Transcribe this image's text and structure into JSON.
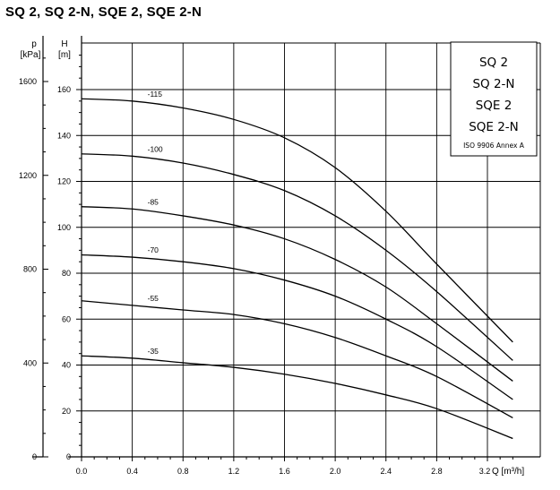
{
  "header": {
    "title": "SQ 2, SQ 2-N, SQE 2, SQE 2-N"
  },
  "legend": {
    "entries": [
      "SQ 2",
      "SQ 2-N",
      "SQE 2",
      "SQE 2-N"
    ],
    "note": "ISO 9906 Annex A"
  },
  "chart_data": {
    "type": "line",
    "title": "SQ 2, SQ 2-N, SQE 2, SQE 2-N",
    "xlabel": "Q [m³/h]",
    "ylabel": "H [m]",
    "y2label": "p [kPa]",
    "xlim": [
      0,
      3.2
    ],
    "ylim": [
      0,
      160
    ],
    "y2lim": [
      0,
      1600
    ],
    "grid": true,
    "legend_position": "top-right",
    "x_tick_labels": [
      "0.0",
      "0.4",
      "0.8",
      "1.2",
      "1.6",
      "2.0",
      "2.4",
      "2.8",
      "3.2"
    ],
    "y_tick_labels": [
      "0",
      "20",
      "40",
      "60",
      "80",
      "100",
      "120",
      "140",
      "160"
    ],
    "y2_tick_labels": [
      "0",
      "400",
      "800",
      "1200",
      "1600"
    ],
    "series": [
      {
        "name": "-115",
        "x": [
          0,
          0.4,
          0.8,
          1.2,
          1.6,
          2.0,
          2.4,
          2.8,
          3.4
        ],
        "y": [
          156,
          155,
          152,
          147,
          139,
          126,
          107,
          84,
          50
        ]
      },
      {
        "name": "-100",
        "x": [
          0,
          0.4,
          0.8,
          1.2,
          1.6,
          2.0,
          2.4,
          2.8,
          3.4
        ],
        "y": [
          132,
          131,
          128,
          123,
          116,
          105,
          90,
          72,
          42
        ]
      },
      {
        "name": "-85",
        "x": [
          0,
          0.4,
          0.8,
          1.2,
          1.6,
          2.0,
          2.4,
          2.8,
          3.4
        ],
        "y": [
          109,
          108,
          105,
          101,
          95,
          86,
          74,
          58,
          33
        ]
      },
      {
        "name": "-70",
        "x": [
          0,
          0.4,
          0.8,
          1.2,
          1.6,
          2.0,
          2.4,
          2.8,
          3.4
        ],
        "y": [
          88,
          87,
          85,
          82,
          77,
          70,
          60,
          48,
          25
        ]
      },
      {
        "name": "-55",
        "x": [
          0,
          0.4,
          0.8,
          1.2,
          1.6,
          2.0,
          2.4,
          2.8,
          3.4
        ],
        "y": [
          68,
          66,
          64,
          62,
          58,
          52,
          44,
          35,
          17
        ]
      },
      {
        "name": "-35",
        "x": [
          0,
          0.4,
          0.8,
          1.2,
          1.6,
          2.0,
          2.4,
          2.8,
          3.4
        ],
        "y": [
          44,
          43,
          41,
          39,
          36,
          32,
          27,
          21,
          8
        ]
      }
    ]
  }
}
